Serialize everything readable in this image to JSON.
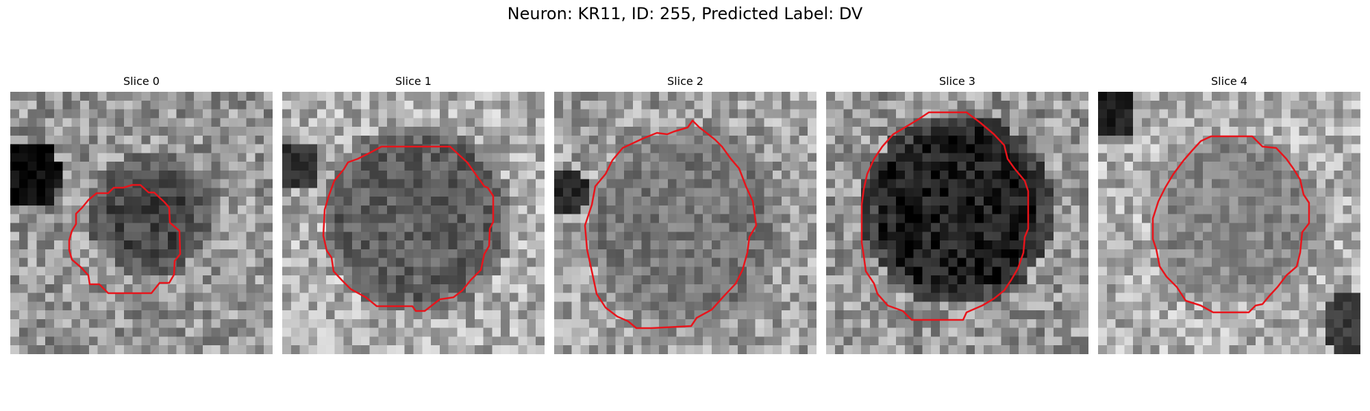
{
  "figure": {
    "title": "Neuron: KR11, ID: 255, Predicted Label: DV"
  },
  "colors": {
    "contour": "#e8141b"
  },
  "panels": [
    {
      "title": "Slice 0"
    },
    {
      "title": "Slice 1"
    },
    {
      "title": "Slice 2"
    },
    {
      "title": "Slice 3"
    },
    {
      "title": "Slice 4"
    }
  ]
}
